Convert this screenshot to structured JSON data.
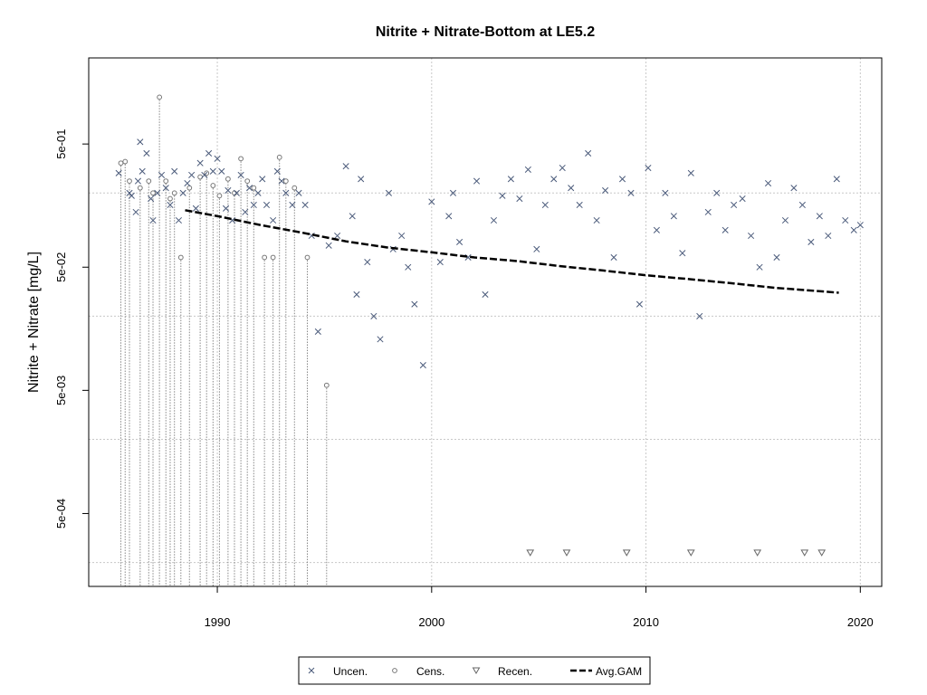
{
  "chart_data": {
    "type": "scatter",
    "title": "Nitrite + Nitrate-Bottom at LE5.2",
    "xlabel": "",
    "ylabel": "Nitrite + Nitrate [mg/L]",
    "x_scale": "linear",
    "y_scale": "log10",
    "xlim": [
      1984,
      2021
    ],
    "ylim": [
      0.000128,
      2.5
    ],
    "x_ticks": [
      1990,
      2000,
      2010,
      2020
    ],
    "x_tick_labels": [
      "1990",
      "2000",
      "2010",
      "2020"
    ],
    "y_ticks": [
      0.0005,
      0.005,
      0.05,
      0.5
    ],
    "y_tick_labels": [
      "5e-04",
      "5e-03",
      "5e-02",
      "5e-01"
    ],
    "grid": true,
    "legend_position": "bottom",
    "colors": {
      "points": "#4a5a7a",
      "censored": "#777777",
      "gam": "#000000"
    },
    "legend": [
      {
        "label": "Uncen.",
        "symbol": "x"
      },
      {
        "label": "Cens.",
        "symbol": "circle"
      },
      {
        "label": "Recen.",
        "symbol": "triangle-down"
      },
      {
        "label": "Avg.GAM",
        "symbol": "dashed-line"
      }
    ],
    "series": [
      {
        "name": "Uncen.",
        "marker": "x",
        "points": [
          [
            1985.4,
            0.29
          ],
          [
            1985.9,
            0.2
          ],
          [
            1986.0,
            0.19
          ],
          [
            1986.2,
            0.14
          ],
          [
            1986.3,
            0.25
          ],
          [
            1986.4,
            0.52
          ],
          [
            1986.5,
            0.3
          ],
          [
            1986.7,
            0.42
          ],
          [
            1986.9,
            0.18
          ],
          [
            1987.0,
            0.12
          ],
          [
            1987.2,
            0.2
          ],
          [
            1987.4,
            0.28
          ],
          [
            1987.6,
            0.22
          ],
          [
            1987.8,
            0.16
          ],
          [
            1988.0,
            0.3
          ],
          [
            1988.2,
            0.12
          ],
          [
            1988.4,
            0.2
          ],
          [
            1988.6,
            0.24
          ],
          [
            1988.8,
            0.28
          ],
          [
            1989.0,
            0.15
          ],
          [
            1989.2,
            0.35
          ],
          [
            1989.4,
            0.28
          ],
          [
            1989.6,
            0.42
          ],
          [
            1989.8,
            0.3
          ],
          [
            1990.0,
            0.38
          ],
          [
            1990.2,
            0.3
          ],
          [
            1990.4,
            0.15
          ],
          [
            1990.5,
            0.21
          ],
          [
            1990.7,
            0.12
          ],
          [
            1990.9,
            0.2
          ],
          [
            1991.1,
            0.28
          ],
          [
            1991.3,
            0.14
          ],
          [
            1991.5,
            0.22
          ],
          [
            1991.7,
            0.16
          ],
          [
            1991.9,
            0.2
          ],
          [
            1992.1,
            0.26
          ],
          [
            1992.3,
            0.16
          ],
          [
            1992.6,
            0.12
          ],
          [
            1992.8,
            0.3
          ],
          [
            1993.0,
            0.25
          ],
          [
            1993.2,
            0.2
          ],
          [
            1993.5,
            0.16
          ],
          [
            1993.8,
            0.2
          ],
          [
            1994.1,
            0.16
          ],
          [
            1994.4,
            0.09
          ],
          [
            1994.7,
            0.015
          ],
          [
            1995.2,
            0.075
          ],
          [
            1995.6,
            0.09
          ],
          [
            1996.0,
            0.33
          ],
          [
            1996.3,
            0.13
          ],
          [
            1996.5,
            0.03
          ],
          [
            1996.7,
            0.26
          ],
          [
            1997.0,
            0.055
          ],
          [
            1997.3,
            0.02
          ],
          [
            1997.6,
            0.013
          ],
          [
            1998.0,
            0.2
          ],
          [
            1998.2,
            0.07
          ],
          [
            1998.6,
            0.09
          ],
          [
            1998.9,
            0.05
          ],
          [
            1999.2,
            0.025
          ],
          [
            1999.6,
            0.008
          ],
          [
            2000.0,
            0.17
          ],
          [
            2000.4,
            0.055
          ],
          [
            2000.8,
            0.13
          ],
          [
            2001.0,
            0.2
          ],
          [
            2001.3,
            0.08
          ],
          [
            2001.7,
            0.06
          ],
          [
            2002.1,
            0.25
          ],
          [
            2002.5,
            0.03
          ],
          [
            2002.9,
            0.12
          ],
          [
            2003.3,
            0.19
          ],
          [
            2003.7,
            0.26
          ],
          [
            2004.1,
            0.18
          ],
          [
            2004.5,
            0.31
          ],
          [
            2004.9,
            0.07
          ],
          [
            2005.3,
            0.16
          ],
          [
            2005.7,
            0.26
          ],
          [
            2006.1,
            0.32
          ],
          [
            2006.5,
            0.22
          ],
          [
            2006.9,
            0.16
          ],
          [
            2007.3,
            0.42
          ],
          [
            2007.7,
            0.12
          ],
          [
            2008.1,
            0.21
          ],
          [
            2008.5,
            0.06
          ],
          [
            2008.9,
            0.26
          ],
          [
            2009.3,
            0.2
          ],
          [
            2009.7,
            0.025
          ],
          [
            2010.1,
            0.32
          ],
          [
            2010.5,
            0.1
          ],
          [
            2010.9,
            0.2
          ],
          [
            2011.3,
            0.13
          ],
          [
            2011.7,
            0.065
          ],
          [
            2012.1,
            0.29
          ],
          [
            2012.5,
            0.02
          ],
          [
            2012.9,
            0.14
          ],
          [
            2013.3,
            0.2
          ],
          [
            2013.7,
            0.1
          ],
          [
            2014.1,
            0.16
          ],
          [
            2014.5,
            0.18
          ],
          [
            2014.9,
            0.09
          ],
          [
            2015.3,
            0.05
          ],
          [
            2015.7,
            0.24
          ],
          [
            2016.1,
            0.06
          ],
          [
            2016.5,
            0.12
          ],
          [
            2016.9,
            0.22
          ],
          [
            2017.3,
            0.16
          ],
          [
            2017.7,
            0.08
          ],
          [
            2018.1,
            0.13
          ],
          [
            2018.5,
            0.09
          ],
          [
            2018.9,
            0.26
          ],
          [
            2019.3,
            0.12
          ],
          [
            2019.7,
            0.1
          ],
          [
            2020.0,
            0.11
          ]
        ]
      },
      {
        "name": "Cens.",
        "marker": "circle",
        "points": [
          [
            1985.5,
            0.35
          ],
          [
            1985.7,
            0.36
          ],
          [
            1985.9,
            0.25
          ],
          [
            1986.4,
            0.22
          ],
          [
            1986.8,
            0.25
          ],
          [
            1987.0,
            0.2
          ],
          [
            1987.3,
            1.2
          ],
          [
            1987.6,
            0.25
          ],
          [
            1987.8,
            0.18
          ],
          [
            1988.0,
            0.2
          ],
          [
            1988.3,
            0.06
          ],
          [
            1988.7,
            0.22
          ],
          [
            1989.2,
            0.27
          ],
          [
            1989.5,
            0.29
          ],
          [
            1989.8,
            0.23
          ],
          [
            1990.1,
            0.19
          ],
          [
            1990.5,
            0.26
          ],
          [
            1990.8,
            0.2
          ],
          [
            1991.1,
            0.38
          ],
          [
            1991.4,
            0.25
          ],
          [
            1991.7,
            0.22
          ],
          [
            1992.2,
            0.06
          ],
          [
            1992.6,
            0.06
          ],
          [
            1992.9,
            0.39
          ],
          [
            1993.2,
            0.25
          ],
          [
            1993.6,
            0.22
          ],
          [
            1994.2,
            0.06
          ],
          [
            1995.1,
            0.0055
          ]
        ]
      },
      {
        "name": "Recen.",
        "marker": "triangle-down",
        "points": [
          [
            2004.6,
            0.00024
          ],
          [
            2006.3,
            0.00024
          ],
          [
            2009.1,
            0.00024
          ],
          [
            2012.1,
            0.00024
          ],
          [
            2015.2,
            0.00024
          ],
          [
            2017.4,
            0.00024
          ],
          [
            2018.2,
            0.00024
          ]
        ]
      },
      {
        "name": "Avg.GAM",
        "marker": "dashed-line",
        "points": [
          [
            1988.5,
            0.145
          ],
          [
            1990.0,
            0.13
          ],
          [
            1992.0,
            0.11
          ],
          [
            1994.0,
            0.095
          ],
          [
            1996.0,
            0.081
          ],
          [
            1998.0,
            0.072
          ],
          [
            2000.0,
            0.066
          ],
          [
            2002.0,
            0.06
          ],
          [
            2004.0,
            0.056
          ],
          [
            2006.0,
            0.051
          ],
          [
            2008.0,
            0.047
          ],
          [
            2010.0,
            0.043
          ],
          [
            2012.0,
            0.04
          ],
          [
            2014.0,
            0.037
          ],
          [
            2016.0,
            0.034
          ],
          [
            2018.0,
            0.032
          ],
          [
            2019.0,
            0.031
          ]
        ]
      }
    ]
  }
}
